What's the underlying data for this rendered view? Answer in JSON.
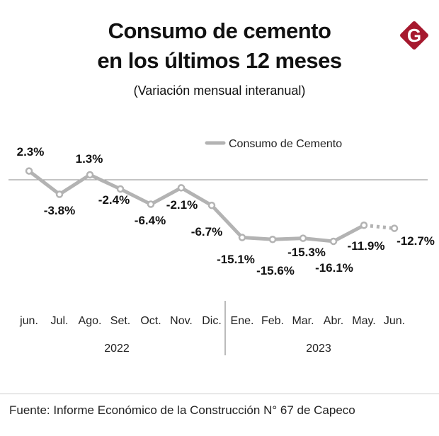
{
  "title_line1": "Consumo de cemento",
  "title_line2": "en los últimos 12 meses",
  "subtitle": "(Variación mensual interanual)",
  "logo_letter": "G",
  "footer": "Fuente: Informe Económico de la Construcción N° 67 de Capeco",
  "colors": {
    "line": "#b3b3b3",
    "logo": "#a6192e",
    "zero_line": "#888888"
  },
  "chart_data": {
    "type": "line",
    "title": "Consumo de cemento en los últimos 12 meses",
    "subtitle": "(Variación mensual interanual)",
    "legend": {
      "label": "Consumo de Cemento",
      "placement": "top-right"
    },
    "categories": [
      "jun.",
      "Jul.",
      "Ago.",
      "Set.",
      "Oct.",
      "Nov.",
      "Dic.",
      "Ene.",
      "Feb.",
      "Mar.",
      "Abr.",
      "May.",
      "Jun."
    ],
    "year_groups": [
      {
        "label": "2022",
        "count": 7
      },
      {
        "label": "2023",
        "count": 6
      }
    ],
    "series": [
      {
        "name": "Consumo de Cemento",
        "values": [
          2.3,
          -3.8,
          1.3,
          -2.4,
          -6.4,
          -2.1,
          -6.7,
          -15.1,
          -15.6,
          -15.3,
          -16.1,
          -11.9,
          -12.7
        ]
      }
    ],
    "data_labels": [
      "2.3%",
      "-3.8%",
      "1.3%",
      "-2.4%",
      "-6.4%",
      "-2.1%",
      "-6.7%",
      "-15.1%",
      "-15.6%",
      "-15.3%",
      "-16.1%",
      "-11.9%",
      "-12.7%"
    ],
    "dotted_last_segment": true,
    "ylim": [
      -17,
      3
    ],
    "grid": false
  }
}
